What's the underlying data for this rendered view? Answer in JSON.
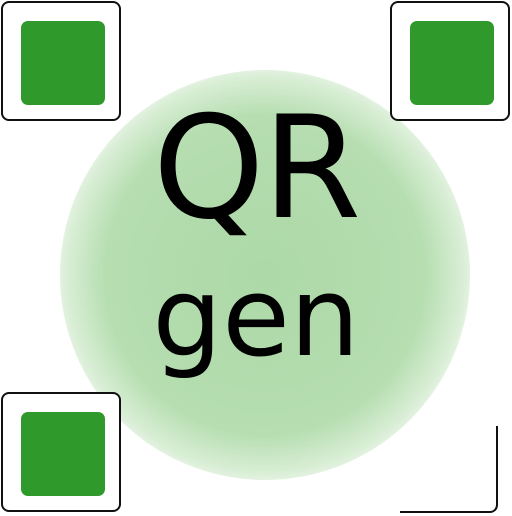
{
  "logo": {
    "line1": "QR",
    "line2": "gen"
  },
  "colors": {
    "finder_fill": "#2f9a2b",
    "glow": "#a8d6a2",
    "outline": "#111111",
    "text": "#000000",
    "background": "#ffffff"
  },
  "icons": {
    "finder_pattern": "qr-finder-square-icon",
    "corner": "qr-corner-bracket-icon"
  }
}
